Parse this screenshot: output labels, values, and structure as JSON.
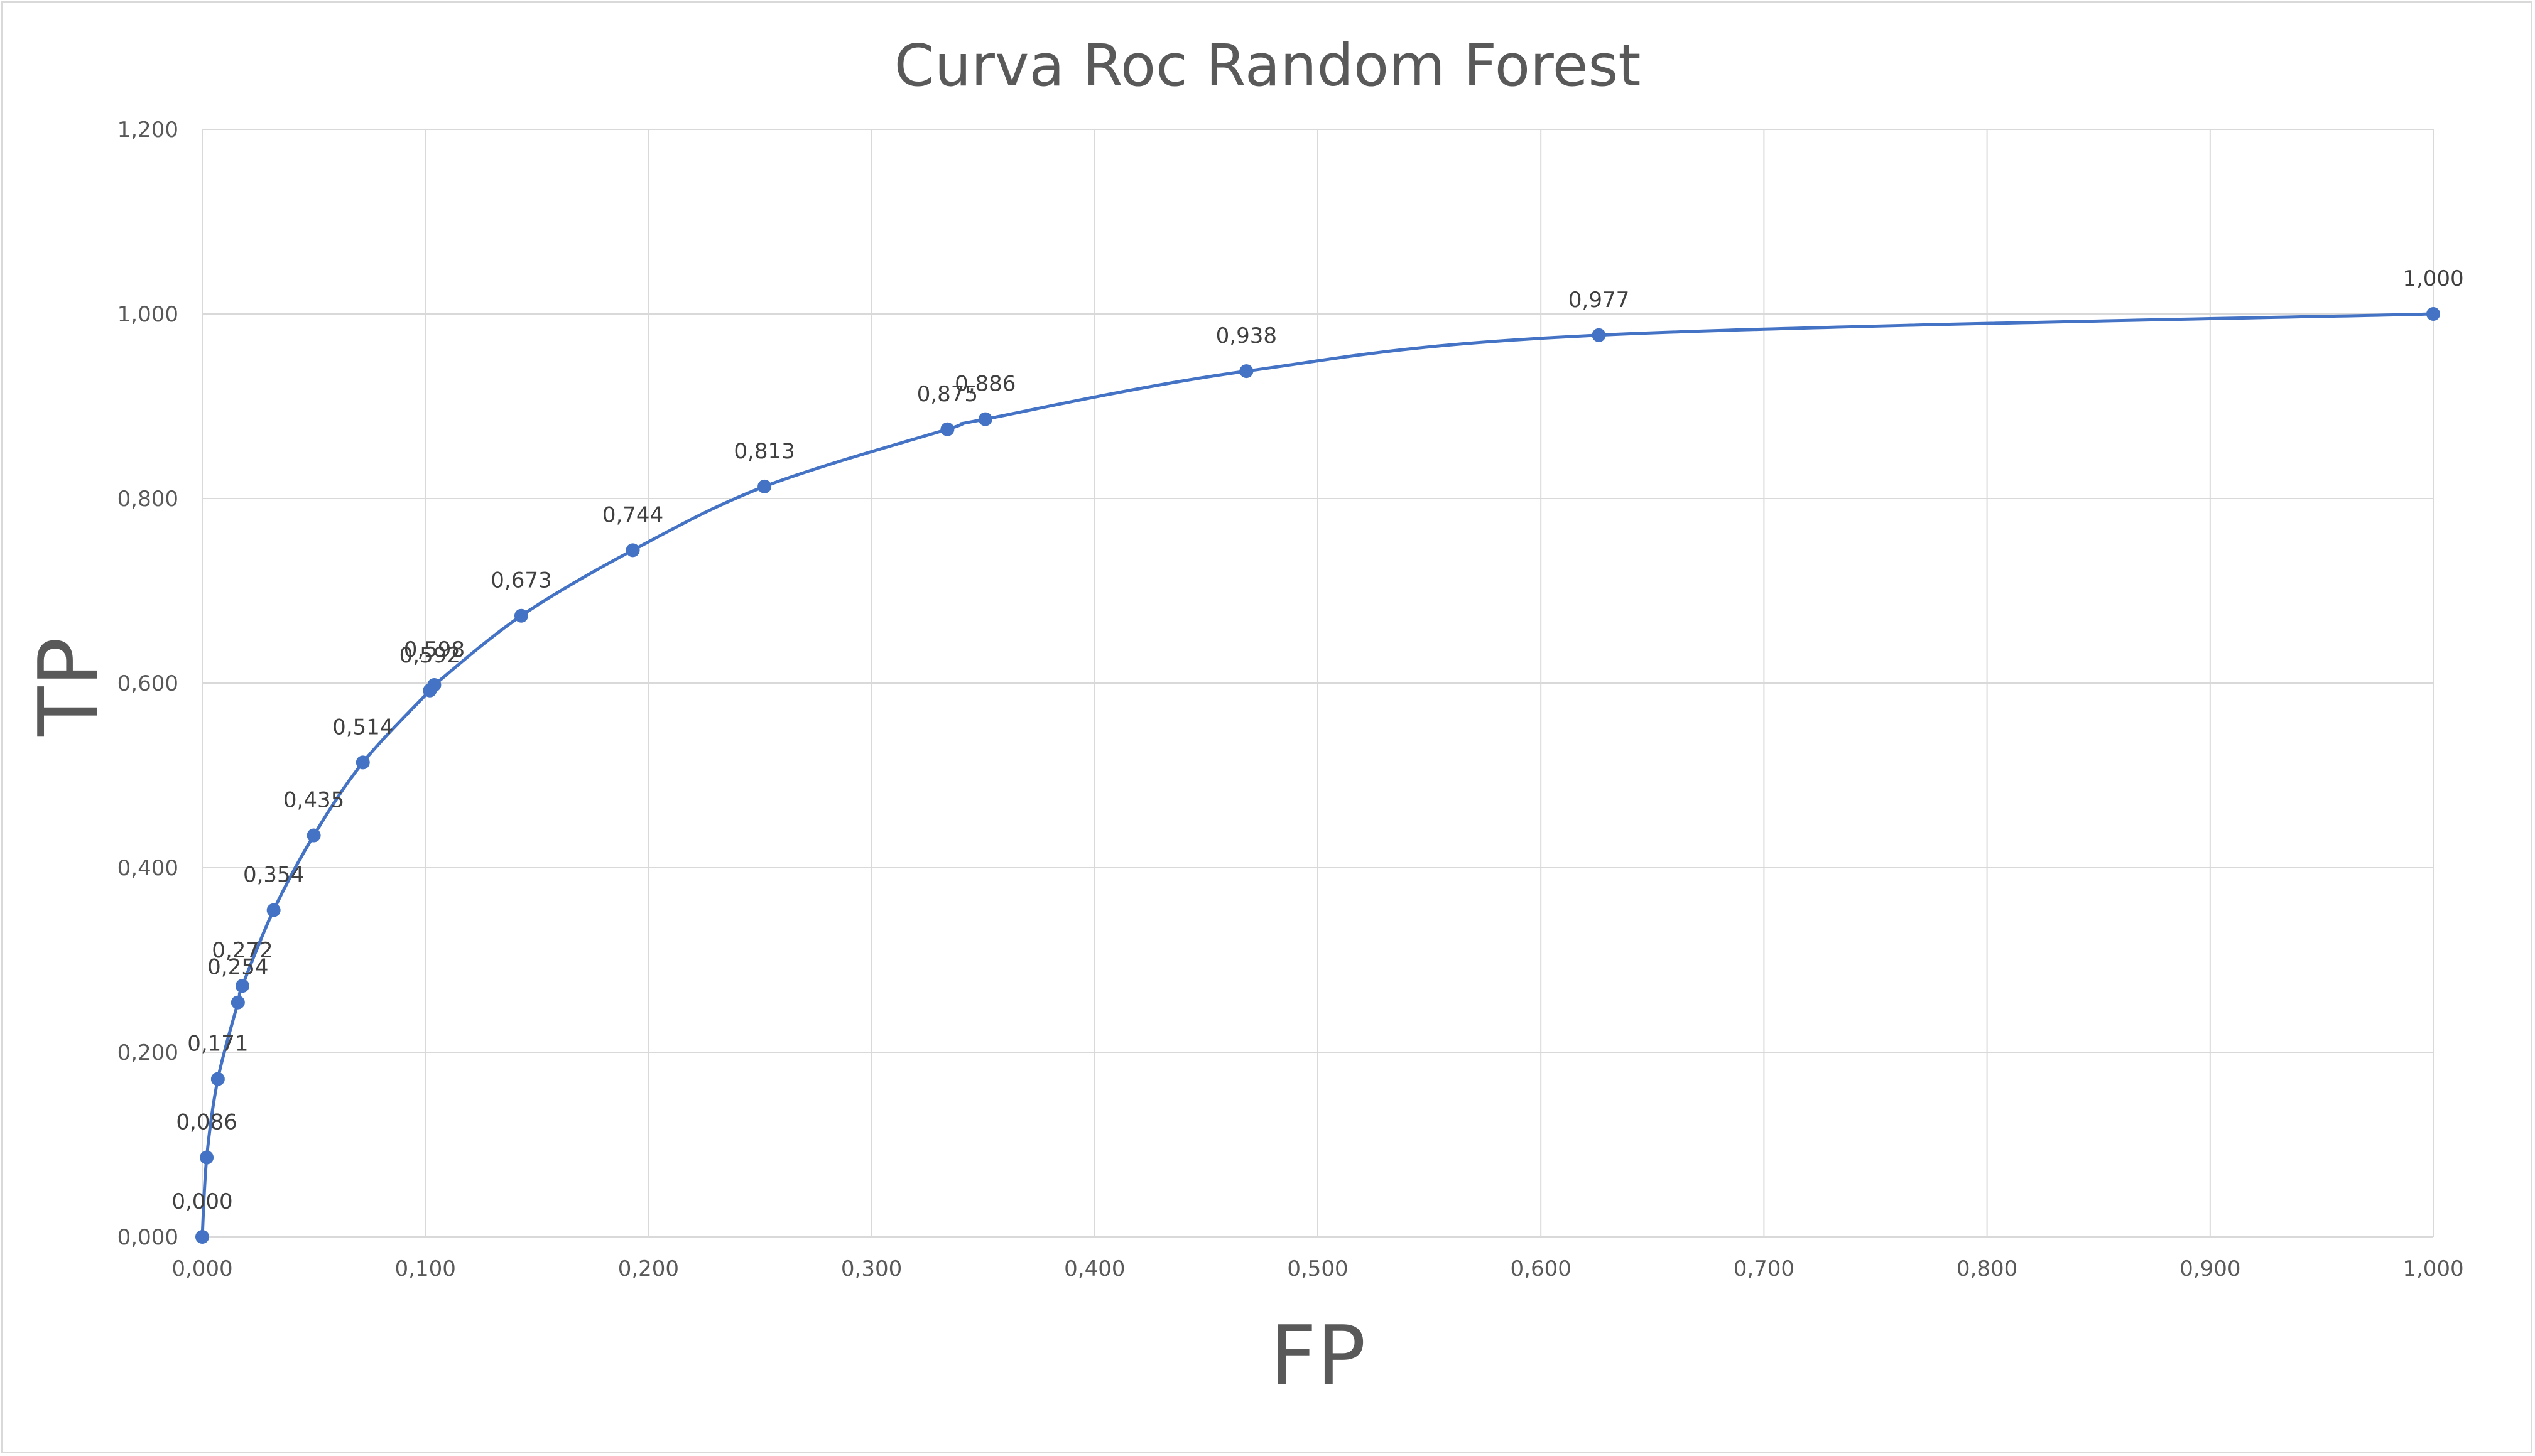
{
  "chart_data": {
    "type": "scatter",
    "title": "Curva Roc Random Forest",
    "xlabel": "FP",
    "ylabel": "TP",
    "xlim": [
      0,
      1
    ],
    "ylim": [
      0,
      1.2
    ],
    "x_ticks": [
      "0,000",
      "0,100",
      "0,200",
      "0,300",
      "0,400",
      "0,500",
      "0,600",
      "0,700",
      "0,800",
      "0,900",
      "1,000"
    ],
    "y_ticks": [
      "0,000",
      "0,200",
      "0,400",
      "0,600",
      "0,800",
      "1,000",
      "1,200"
    ],
    "grid": true,
    "legend": "none",
    "line_style": "smooth-with-markers",
    "series_color": "#4472c4",
    "series": [
      {
        "x": [
          0.0,
          0.002,
          0.007,
          0.016,
          0.018,
          0.032,
          0.05,
          0.072,
          0.102,
          0.104,
          0.143,
          0.193,
          0.252,
          0.334,
          0.351,
          0.468,
          0.626,
          1.0
        ],
        "y": [
          0.0,
          0.086,
          0.171,
          0.254,
          0.272,
          0.354,
          0.435,
          0.514,
          0.592,
          0.598,
          0.673,
          0.744,
          0.813,
          0.875,
          0.886,
          0.938,
          0.977,
          1.0
        ],
        "labels": [
          "0,000",
          "0,086",
          "0,171",
          "0,254",
          "0,272",
          "0,354",
          "0,435",
          "0,514",
          "0,592",
          "0,598",
          "0,673",
          "0,744",
          "0,813",
          "0,875",
          "0,886",
          "0,938",
          "0,977",
          "1,000"
        ]
      }
    ]
  }
}
